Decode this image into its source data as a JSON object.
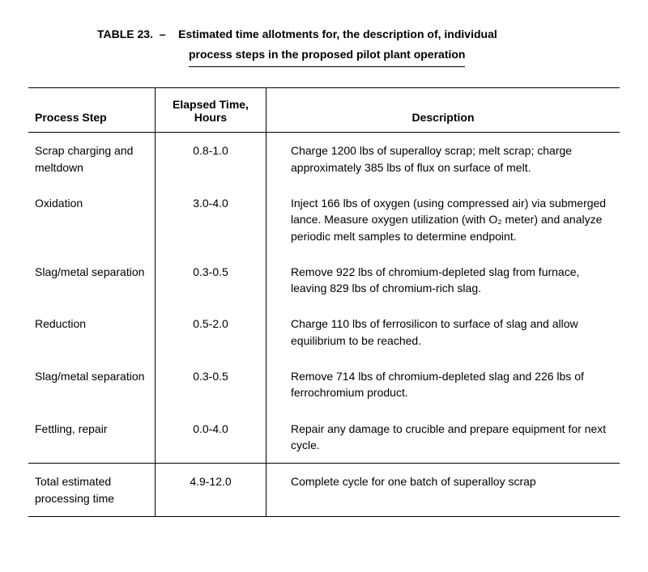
{
  "title": {
    "label": "TABLE 23.",
    "sep": "–",
    "line1": "Estimated time allotments for, the description of, individual",
    "line2": "process steps in the proposed pilot plant operation"
  },
  "columns": {
    "step": "Process Step",
    "time_l1": "Elapsed Time,",
    "time_l2": "Hours",
    "desc": "Description"
  },
  "rows": [
    {
      "step": "Scrap charging and meltdown",
      "time": "0.8-1.0",
      "desc": "Charge 1200 lbs of superalloy scrap; melt scrap; charge approximately 385 lbs of flux on surface of melt."
    },
    {
      "step": "Oxidation",
      "time": "3.0-4.0",
      "desc": "Inject 166 lbs of oxygen (using compressed air) via submerged lance.  Measure oxygen utilization (with O₂ meter) and analyze periodic melt samples to determine endpoint."
    },
    {
      "step": "Slag/metal separation",
      "time": "0.3-0.5",
      "desc": "Remove 922 lbs of chromium-depleted slag from furnace, leaving 829 lbs of chromium-rich slag."
    },
    {
      "step": "Reduction",
      "time": "0.5-2.0",
      "desc": "Charge 110 lbs of ferrosilicon to surface of slag and allow equilibrium to be reached."
    },
    {
      "step": "Slag/metal separation",
      "time": "0.3-0.5",
      "desc": "Remove 714 lbs of chromium-depleted slag and 226 lbs of ferrochromium product."
    },
    {
      "step": "Fettling, repair",
      "time": "0.0-4.0",
      "desc": "Repair any damage to crucible and prepare equipment for next cycle."
    }
  ],
  "total": {
    "step": "Total estimated processing time",
    "time": "4.9-12.0",
    "desc": "Complete cycle for one batch of superalloy scrap"
  }
}
